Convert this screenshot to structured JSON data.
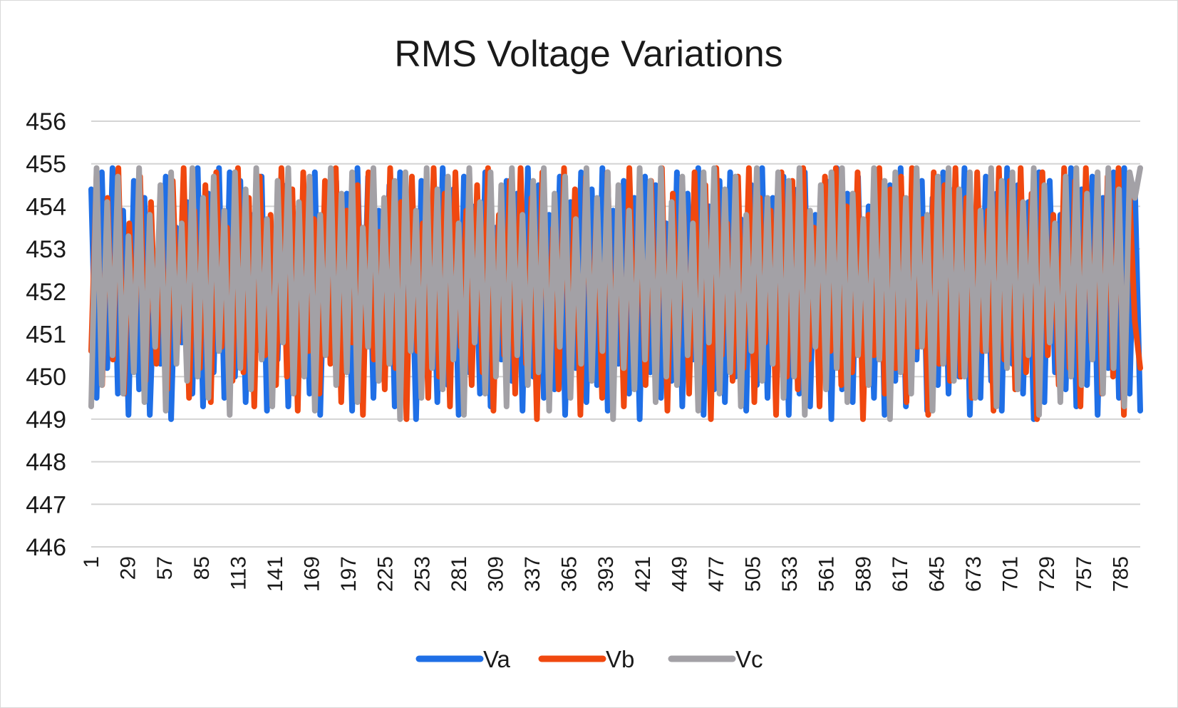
{
  "chart_data": {
    "type": "line",
    "title": "RMS Voltage Variations",
    "xlabel": "",
    "ylabel": "",
    "ylim": [
      446,
      456
    ],
    "y_ticks": [
      "446",
      "447",
      "448",
      "449",
      "450",
      "451",
      "452",
      "453",
      "454",
      "455",
      "456"
    ],
    "x_range": [
      1,
      800
    ],
    "x_tick_labels": [
      "1",
      "29",
      "57",
      "85",
      "113",
      "141",
      "169",
      "197",
      "225",
      "253",
      "281",
      "309",
      "337",
      "365",
      "393",
      "421",
      "449",
      "477",
      "505",
      "533",
      "561",
      "589",
      "617",
      "645",
      "673",
      "701",
      "729",
      "757",
      "785"
    ],
    "grid": "horizontal",
    "legend_position": "bottom",
    "series_note": "Each phase fluctuates rapidly between roughly 449 and 455 V across ~800 samples; values below are an approximate reconstruction of the visible trace.",
    "series": [
      {
        "name": "Va",
        "color": "#1f6fe6",
        "values": [
          454.4,
          449.5,
          454.8,
          450.2,
          454.9,
          449.6,
          453.9,
          449.1,
          454.6,
          449.7,
          454.2,
          449.1,
          452.8,
          450.3,
          454.7,
          449.0,
          453.5,
          450.8,
          454.1,
          449.6,
          454.9,
          449.3,
          454.3,
          450.1,
          454.9,
          449.5,
          454.8,
          450.0,
          454.6,
          449.4,
          453.8,
          450.6,
          454.7,
          449.2,
          452.9,
          450.4,
          454.5,
          449.3,
          453.6,
          450.9,
          454.2,
          449.6,
          454.8,
          449.1,
          454.0,
          450.5,
          454.6,
          449.8,
          454.3,
          449.2,
          454.9,
          450.2,
          454.7,
          449.5,
          453.9,
          450.0,
          454.5,
          449.3,
          454.8,
          449.7,
          454.2,
          449.0,
          454.6,
          450.3,
          453.7,
          449.4,
          454.9,
          449.8,
          454.4,
          449.1,
          454.7,
          450.1,
          454.0,
          449.6,
          454.8,
          449.3,
          453.5,
          450.4,
          454.6,
          449.9,
          454.3,
          449.2,
          454.9,
          450.0,
          454.5,
          449.5,
          453.8,
          449.7,
          454.7,
          449.1,
          454.1,
          450.2,
          454.8,
          449.4,
          454.4,
          449.8,
          454.9,
          449.2,
          453.9,
          450.3,
          454.6,
          449.6,
          454.2,
          449.0,
          454.7,
          450.1,
          454.5,
          449.5,
          453.6,
          449.9,
          454.8,
          449.3,
          454.3,
          450.4,
          454.9,
          449.1,
          454.0,
          449.7,
          454.6,
          449.4,
          454.8,
          450.0,
          453.7,
          449.2,
          454.5,
          449.8,
          454.9,
          449.5,
          454.2,
          450.3,
          454.7,
          449.1,
          454.4,
          449.6,
          454.8,
          449.3,
          453.8,
          450.1,
          454.6,
          449.0,
          454.9,
          449.7,
          454.3,
          449.4,
          454.7,
          450.2,
          454.0,
          449.5,
          454.8,
          449.1,
          454.5,
          449.9,
          454.9,
          449.3,
          453.9,
          450.4,
          454.6,
          449.2,
          454.2,
          449.8,
          454.8,
          449.6,
          454.4,
          450.0,
          454.9,
          449.1,
          453.7,
          449.5,
          454.7,
          449.9,
          454.3,
          449.2,
          454.9,
          450.3,
          454.5,
          449.6,
          454.1,
          449.0,
          454.8,
          449.4,
          454.6,
          450.1,
          453.8,
          449.7,
          454.9,
          449.3,
          454.4,
          449.8,
          454.7,
          449.1,
          454.2,
          450.2,
          454.8,
          449.5,
          454.9,
          449.6,
          454.5,
          449.2
        ]
      },
      {
        "name": "Vb",
        "color": "#f0480f",
        "values": [
          450.6,
          454.8,
          449.8,
          454.2,
          450.4,
          454.9,
          449.6,
          453.6,
          450.9,
          454.7,
          449.9,
          454.1,
          450.3,
          453.2,
          449.7,
          454.6,
          450.8,
          454.9,
          449.5,
          453.9,
          450.2,
          454.5,
          449.4,
          454.8,
          450.7,
          453.5,
          449.9,
          454.9,
          450.1,
          454.2,
          449.3,
          454.7,
          450.5,
          453.8,
          449.8,
          454.9,
          450.0,
          454.4,
          449.2,
          454.8,
          450.6,
          453.7,
          449.6,
          454.6,
          450.3,
          454.9,
          449.4,
          453.9,
          450.8,
          454.5,
          449.1,
          454.8,
          450.4,
          453.4,
          449.7,
          454.9,
          450.2,
          454.1,
          449.0,
          454.7,
          450.6,
          453.6,
          449.5,
          454.9,
          450.0,
          454.3,
          449.3,
          454.8,
          450.7,
          453.9,
          449.8,
          454.5,
          450.1,
          454.9,
          449.2,
          453.8,
          450.5,
          454.6,
          449.6,
          454.9,
          450.3,
          454.2,
          449.0,
          454.8,
          450.8,
          453.5,
          449.7,
          454.9,
          450.2,
          454.4,
          449.1,
          454.7,
          450.6,
          453.9,
          449.5,
          454.8,
          450.0,
          454.1,
          449.3,
          454.9,
          450.4,
          453.7,
          449.8,
          454.6,
          450.1,
          454.9,
          449.2,
          454.3,
          450.7,
          453.8,
          449.6,
          454.8,
          450.3,
          454.5,
          449.0,
          454.9,
          450.5,
          453.6,
          449.9,
          454.7,
          450.2,
          454.9,
          449.4,
          454.2,
          450.8,
          453.9,
          449.1,
          454.8,
          450.0,
          454.6,
          449.7,
          454.9,
          450.4,
          453.5,
          449.3,
          454.7,
          450.6,
          454.9,
          449.8,
          454.0,
          450.1,
          454.8,
          449.0,
          453.8,
          450.5,
          454.9,
          449.6,
          454.4,
          450.2,
          454.7,
          449.4,
          454.9,
          450.7,
          453.7,
          449.1,
          454.8,
          450.3,
          454.5,
          449.9,
          454.9,
          450.0,
          454.2,
          449.5,
          454.8,
          450.6,
          453.9,
          449.2,
          454.9,
          450.4,
          454.6,
          449.7,
          454.9,
          450.1,
          454.3,
          449.0,
          454.8,
          450.5,
          453.8,
          449.8,
          454.9,
          450.2,
          454.6,
          449.3,
          454.9,
          450.8,
          454.1,
          449.6,
          454.7,
          450.0,
          454.9,
          449.1,
          454.4,
          451.3,
          450.2
        ]
      },
      {
        "name": "Vc",
        "color": "#a3a1a6",
        "values": [
          449.3,
          454.9,
          449.8,
          454.1,
          450.5,
          454.7,
          449.6,
          453.3,
          450.1,
          454.9,
          449.4,
          453.8,
          450.7,
          454.5,
          449.2,
          454.8,
          450.3,
          453.6,
          449.9,
          454.9,
          450.0,
          454.2,
          449.5,
          454.7,
          450.6,
          453.9,
          449.1,
          454.8,
          450.2,
          454.4,
          449.7,
          454.9,
          450.4,
          453.7,
          449.3,
          454.6,
          450.8,
          454.9,
          449.6,
          454.1,
          450.0,
          454.7,
          449.2,
          453.8,
          450.5,
          454.9,
          449.8,
          454.3,
          450.1,
          454.8,
          449.4,
          453.5,
          450.7,
          454.9,
          449.9,
          454.2,
          450.3,
          454.6,
          449.0,
          454.8,
          450.6,
          453.9,
          449.5,
          454.9,
          450.2,
          454.4,
          449.7,
          454.7,
          450.4,
          453.6,
          449.1,
          454.9,
          450.8,
          454.1,
          449.6,
          454.8,
          450.0,
          454.5,
          449.3,
          454.9,
          450.5,
          453.8,
          449.8,
          454.6,
          450.1,
          454.9,
          449.2,
          454.3,
          450.7,
          454.7,
          449.5,
          453.7,
          450.3,
          454.9,
          449.9,
          454.2,
          450.6,
          454.8,
          449.0,
          454.5,
          450.2,
          453.9,
          449.7,
          454.9,
          450.4,
          454.6,
          449.4,
          454.9,
          450.0,
          454.1,
          449.8,
          454.7,
          450.5,
          453.6,
          449.2,
          454.8,
          450.8,
          454.9,
          449.6,
          454.4,
          450.1,
          454.7,
          449.3,
          453.8,
          450.6,
          454.9,
          449.9,
          454.2,
          450.3,
          454.8,
          449.5,
          454.6,
          450.0,
          454.9,
          449.1,
          453.9,
          450.7,
          454.5,
          449.7,
          454.8,
          450.2,
          454.9,
          449.4,
          454.3,
          450.5,
          453.7,
          449.8,
          454.9,
          450.4,
          454.6,
          449.0,
          454.8,
          450.1,
          454.2,
          449.6,
          454.9,
          450.7,
          453.8,
          449.2,
          454.7,
          450.3,
          454.9,
          449.9,
          454.4,
          450.0,
          454.8,
          449.5,
          453.9,
          450.6,
          454.9,
          449.3,
          454.6,
          450.2,
          454.8,
          449.7,
          454.1,
          450.5,
          454.9,
          449.1,
          454.5,
          450.8,
          453.6,
          449.4,
          454.7,
          450.0,
          454.9,
          449.8,
          454.3,
          450.4,
          454.8,
          449.6,
          454.9,
          450.2,
          454.4,
          449.3,
          454.8,
          454.2,
          454.9
        ]
      }
    ]
  }
}
